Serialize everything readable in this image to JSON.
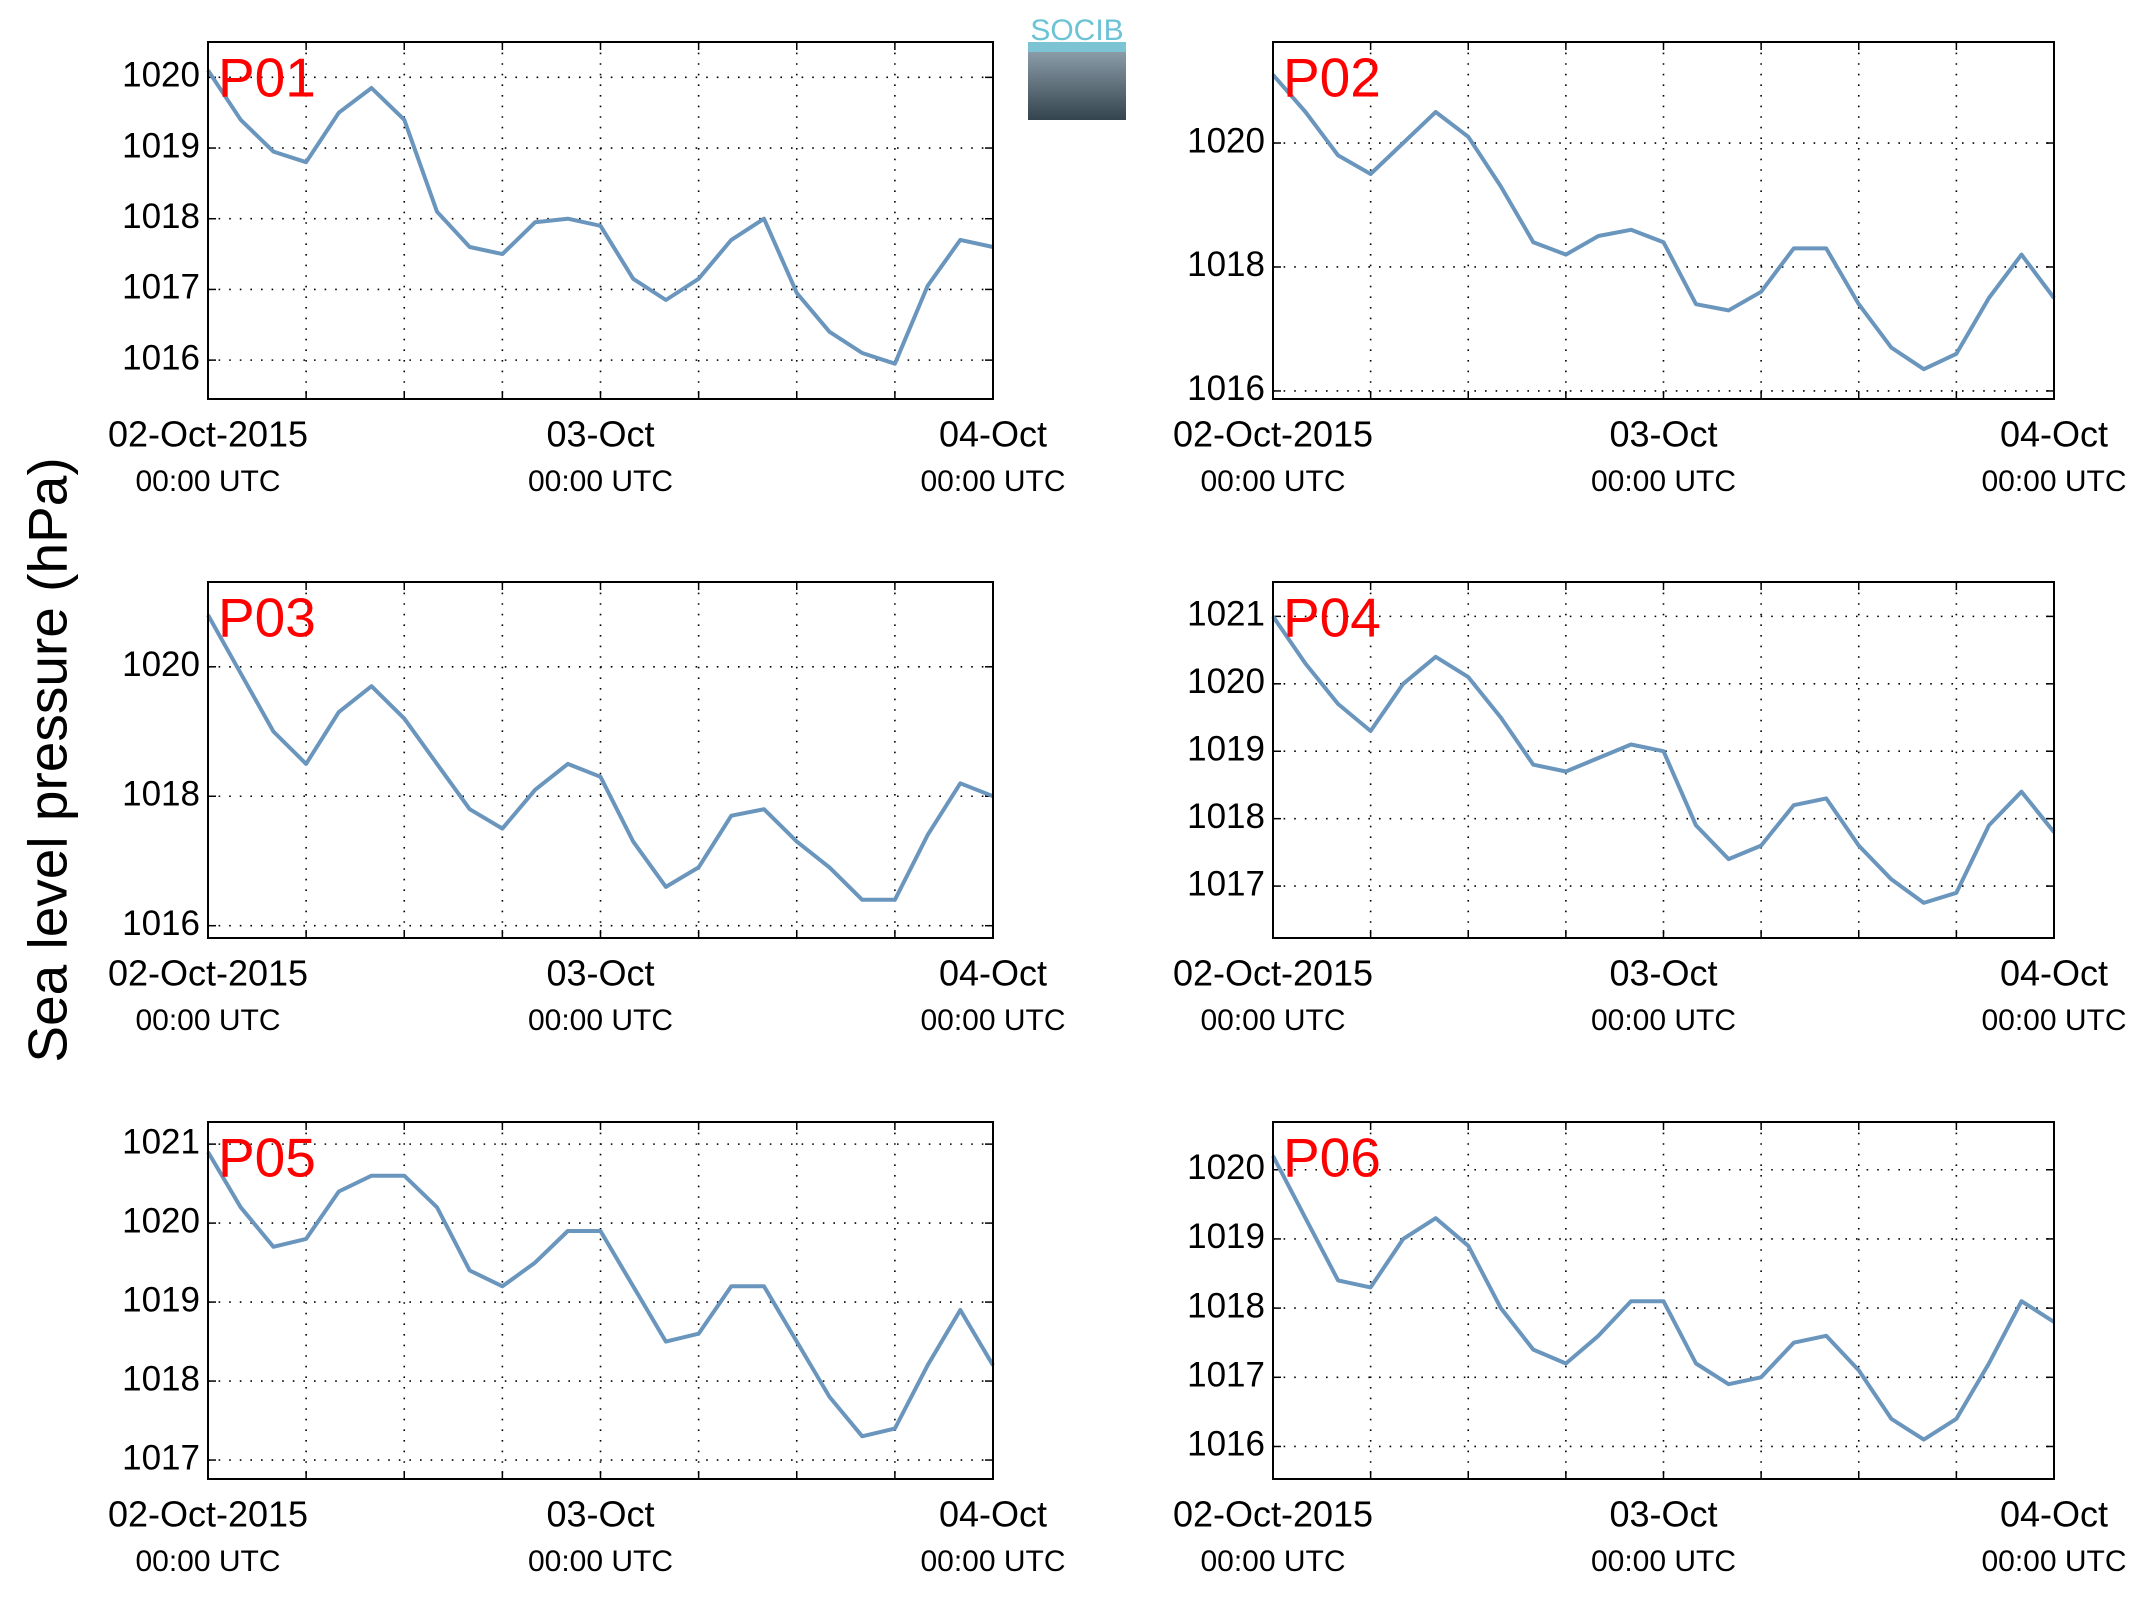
{
  "ylabel": "Sea level pressure (hPa)",
  "logo": "SOCIB",
  "chart_data": [
    {
      "type": "line",
      "title": "P01",
      "color": "#6a96bd",
      "grid": true,
      "x": [
        0,
        2,
        4,
        6,
        8,
        10,
        12,
        14,
        16,
        18,
        20,
        22,
        24,
        26,
        28,
        30,
        32,
        34,
        36,
        38,
        40,
        42,
        44,
        46,
        48
      ],
      "values": [
        1020.1,
        1019.4,
        1018.95,
        1018.8,
        1019.5,
        1019.85,
        1019.4,
        1018.1,
        1017.6,
        1017.5,
        1017.95,
        1018.0,
        1017.9,
        1017.15,
        1016.85,
        1017.15,
        1017.7,
        1018.0,
        1016.95,
        1016.4,
        1016.1,
        1015.95,
        1017.05,
        1017.7,
        1017.6
      ],
      "xlim": [
        0,
        48
      ],
      "ylim": [
        1015.45,
        1020.5
      ],
      "xticks": [
        {
          "value": 0,
          "label": "02-Oct-2015",
          "sublabel": "00:00 UTC"
        },
        {
          "value": 6,
          "label": null
        },
        {
          "value": 12,
          "label": null
        },
        {
          "value": 18,
          "label": null
        },
        {
          "value": 24,
          "label": "03-Oct",
          "sublabel": "00:00 UTC"
        },
        {
          "value": 30,
          "label": null
        },
        {
          "value": 36,
          "label": null
        },
        {
          "value": 42,
          "label": null
        },
        {
          "value": 48,
          "label": "04-Oct",
          "sublabel": "00:00 UTC"
        }
      ],
      "yticks": [
        1016,
        1017,
        1018,
        1019,
        1020
      ]
    },
    {
      "type": "line",
      "title": "P02",
      "color": "#6a96bd",
      "grid": true,
      "x": [
        0,
        2,
        4,
        6,
        8,
        10,
        12,
        14,
        16,
        18,
        20,
        22,
        24,
        26,
        28,
        30,
        32,
        34,
        36,
        38,
        40,
        42,
        44,
        46,
        48
      ],
      "values": [
        1021.1,
        1020.5,
        1019.8,
        1019.5,
        1020.0,
        1020.5,
        1020.1,
        1019.3,
        1018.4,
        1018.2,
        1018.5,
        1018.6,
        1018.4,
        1017.4,
        1017.3,
        1017.6,
        1018.3,
        1018.3,
        1017.4,
        1016.7,
        1016.35,
        1016.6,
        1017.5,
        1018.2,
        1017.5
      ],
      "xlim": [
        0,
        48
      ],
      "ylim": [
        1015.87,
        1021.63
      ],
      "xticks": [
        {
          "value": 0,
          "label": "02-Oct-2015",
          "sublabel": "00:00 UTC"
        },
        {
          "value": 6,
          "label": null
        },
        {
          "value": 12,
          "label": null
        },
        {
          "value": 18,
          "label": null
        },
        {
          "value": 24,
          "label": "03-Oct",
          "sublabel": "00:00 UTC"
        },
        {
          "value": 30,
          "label": null
        },
        {
          "value": 36,
          "label": null
        },
        {
          "value": 42,
          "label": null
        },
        {
          "value": 48,
          "label": "04-Oct",
          "sublabel": "00:00 UTC"
        }
      ],
      "yticks": [
        1016,
        1018,
        1020
      ]
    },
    {
      "type": "line",
      "title": "P03",
      "color": "#6a96bd",
      "grid": true,
      "x": [
        0,
        2,
        4,
        6,
        8,
        10,
        12,
        14,
        16,
        18,
        20,
        22,
        24,
        26,
        28,
        30,
        32,
        34,
        36,
        38,
        40,
        42,
        44,
        46,
        48
      ],
      "values": [
        1020.8,
        1019.9,
        1019.0,
        1018.5,
        1019.3,
        1019.7,
        1019.2,
        1018.5,
        1017.8,
        1017.5,
        1018.1,
        1018.5,
        1018.3,
        1017.3,
        1016.6,
        1016.9,
        1017.7,
        1017.8,
        1017.3,
        1016.9,
        1016.4,
        1016.4,
        1017.4,
        1018.2,
        1018.0
      ],
      "xlim": [
        0,
        48
      ],
      "ylim": [
        1015.81,
        1021.31
      ],
      "xticks": [
        {
          "value": 0,
          "label": "02-Oct-2015",
          "sublabel": "00:00 UTC"
        },
        {
          "value": 6,
          "label": null
        },
        {
          "value": 12,
          "label": null
        },
        {
          "value": 18,
          "label": null
        },
        {
          "value": 24,
          "label": "03-Oct",
          "sublabel": "00:00 UTC"
        },
        {
          "value": 30,
          "label": null
        },
        {
          "value": 36,
          "label": null
        },
        {
          "value": 42,
          "label": null
        },
        {
          "value": 48,
          "label": "04-Oct",
          "sublabel": "00:00 UTC"
        }
      ],
      "yticks": [
        1016,
        1018,
        1020
      ]
    },
    {
      "type": "line",
      "title": "P04",
      "color": "#6a96bd",
      "grid": true,
      "x": [
        0,
        2,
        4,
        6,
        8,
        10,
        12,
        14,
        16,
        18,
        20,
        22,
        24,
        26,
        28,
        30,
        32,
        34,
        36,
        38,
        40,
        42,
        44,
        46,
        48
      ],
      "values": [
        1021.0,
        1020.3,
        1019.7,
        1019.3,
        1020.0,
        1020.4,
        1020.1,
        1019.5,
        1018.8,
        1018.7,
        1018.9,
        1019.1,
        1019.0,
        1017.9,
        1017.4,
        1017.6,
        1018.2,
        1018.3,
        1017.6,
        1017.1,
        1016.75,
        1016.9,
        1017.9,
        1018.4,
        1017.8
      ],
      "xlim": [
        0,
        48
      ],
      "ylim": [
        1016.23,
        1021.51
      ],
      "xticks": [
        {
          "value": 0,
          "label": "02-Oct-2015",
          "sublabel": "00:00 UTC"
        },
        {
          "value": 6,
          "label": null
        },
        {
          "value": 12,
          "label": null
        },
        {
          "value": 18,
          "label": null
        },
        {
          "value": 24,
          "label": "03-Oct",
          "sublabel": "00:00 UTC"
        },
        {
          "value": 30,
          "label": null
        },
        {
          "value": 36,
          "label": null
        },
        {
          "value": 42,
          "label": null
        },
        {
          "value": 48,
          "label": "04-Oct",
          "sublabel": "00:00 UTC"
        }
      ],
      "yticks": [
        1017,
        1018,
        1019,
        1020,
        1021
      ]
    },
    {
      "type": "line",
      "title": "P05",
      "color": "#6a96bd",
      "grid": true,
      "x": [
        0,
        2,
        4,
        6,
        8,
        10,
        12,
        14,
        16,
        18,
        20,
        22,
        24,
        26,
        28,
        30,
        32,
        34,
        36,
        38,
        40,
        42,
        44,
        46,
        48
      ],
      "values": [
        1020.9,
        1020.2,
        1019.7,
        1019.8,
        1020.4,
        1020.6,
        1020.6,
        1020.2,
        1019.4,
        1019.2,
        1019.5,
        1019.9,
        1019.9,
        1019.2,
        1018.5,
        1018.6,
        1019.2,
        1019.2,
        1018.5,
        1017.8,
        1017.3,
        1017.4,
        1018.2,
        1018.9,
        1018.2
      ],
      "xlim": [
        0,
        48
      ],
      "ylim": [
        1016.76,
        1021.28
      ],
      "xticks": [
        {
          "value": 0,
          "label": "02-Oct-2015",
          "sublabel": "00:00 UTC"
        },
        {
          "value": 6,
          "label": null
        },
        {
          "value": 12,
          "label": null
        },
        {
          "value": 18,
          "label": null
        },
        {
          "value": 24,
          "label": "03-Oct",
          "sublabel": "00:00 UTC"
        },
        {
          "value": 30,
          "label": null
        },
        {
          "value": 36,
          "label": null
        },
        {
          "value": 42,
          "label": null
        },
        {
          "value": 48,
          "label": "04-Oct",
          "sublabel": "00:00 UTC"
        }
      ],
      "yticks": [
        1017,
        1018,
        1019,
        1020,
        1021
      ]
    },
    {
      "type": "line",
      "title": "P06",
      "color": "#6a96bd",
      "grid": true,
      "x": [
        0,
        2,
        4,
        6,
        8,
        10,
        12,
        14,
        16,
        18,
        20,
        22,
        24,
        26,
        28,
        30,
        32,
        34,
        36,
        38,
        40,
        42,
        44,
        46,
        48
      ],
      "values": [
        1020.2,
        1019.3,
        1018.4,
        1018.3,
        1019.0,
        1019.3,
        1018.9,
        1018.0,
        1017.4,
        1017.2,
        1017.6,
        1018.1,
        1018.1,
        1017.2,
        1016.9,
        1017.0,
        1017.5,
        1017.6,
        1017.1,
        1016.4,
        1016.1,
        1016.4,
        1017.2,
        1018.1,
        1017.8
      ],
      "xlim": [
        0,
        48
      ],
      "ylim": [
        1015.53,
        1020.69
      ],
      "xticks": [
        {
          "value": 0,
          "label": "02-Oct-2015",
          "sublabel": "00:00 UTC"
        },
        {
          "value": 6,
          "label": null
        },
        {
          "value": 12,
          "label": null
        },
        {
          "value": 18,
          "label": null
        },
        {
          "value": 24,
          "label": "03-Oct",
          "sublabel": "00:00 UTC"
        },
        {
          "value": 30,
          "label": null
        },
        {
          "value": 36,
          "label": null
        },
        {
          "value": 42,
          "label": null
        },
        {
          "value": 48,
          "label": "04-Oct",
          "sublabel": "00:00 UTC"
        }
      ],
      "yticks": [
        1016,
        1017,
        1018,
        1019,
        1020
      ]
    }
  ]
}
